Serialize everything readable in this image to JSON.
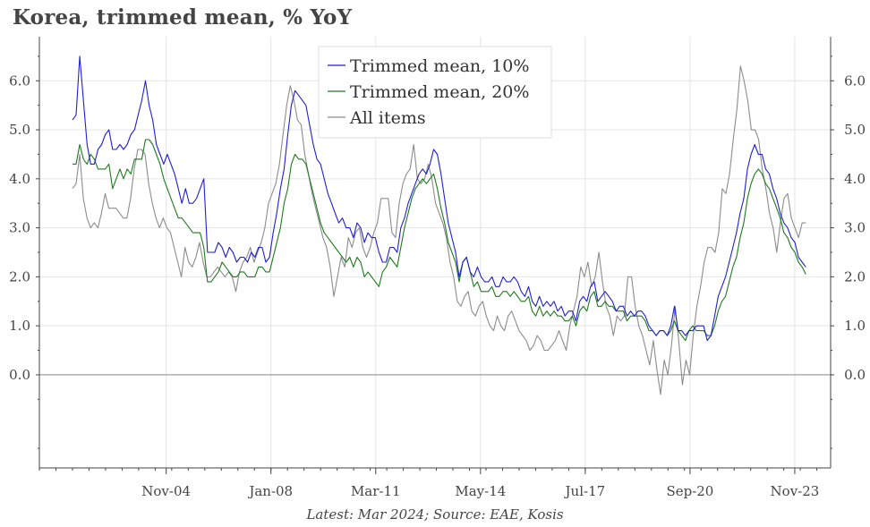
{
  "title": "Korea, trimmed mean, % YoY",
  "footnote": "Latest: Mar 2024; Source: EAE, Kosis",
  "chart_data": {
    "type": "line",
    "title": "Korea, trimmed mean, % YoY",
    "xlabel": "",
    "ylabel": "",
    "x_tick_labels": [
      "Nov-04",
      "Jan-08",
      "Mar-11",
      "May-14",
      "Jul-17",
      "Sep-20",
      "Nov-23"
    ],
    "x_tick_dates": [
      "2004-11",
      "2008-01",
      "2011-03",
      "2014-05",
      "2017-07",
      "2020-09",
      "2023-11"
    ],
    "x_start": "2002-01",
    "x_end": "2024-03",
    "xlim": [
      "2001-01",
      "2024-12"
    ],
    "ylim": [
      -1.9,
      6.9
    ],
    "y_ticks": [
      "0.0",
      "1.0",
      "2.0",
      "3.0",
      "4.0",
      "5.0",
      "6.0"
    ],
    "secondary_y_axis": true,
    "grid": true,
    "legend_position": "top-center",
    "series": [
      {
        "name": "Trimmed mean, 10%",
        "color": "#1f1fd6",
        "values": [
          5.2,
          5.3,
          6.5,
          5.6,
          4.7,
          4.3,
          4.3,
          4.6,
          4.7,
          4.9,
          5.0,
          4.6,
          4.6,
          4.7,
          4.6,
          4.7,
          4.9,
          5.0,
          5.3,
          5.6,
          6.0,
          5.5,
          5.2,
          4.7,
          4.5,
          4.3,
          4.5,
          4.3,
          4.1,
          3.8,
          3.5,
          3.8,
          3.5,
          3.5,
          3.6,
          3.8,
          4.0,
          2.5,
          2.5,
          2.5,
          2.7,
          2.6,
          2.4,
          2.6,
          2.5,
          2.3,
          2.4,
          2.4,
          2.3,
          2.5,
          2.4,
          2.6,
          2.6,
          2.3,
          2.4,
          2.9,
          3.3,
          3.8,
          4.2,
          4.9,
          5.5,
          5.8,
          5.7,
          5.6,
          5.5,
          5.1,
          4.7,
          4.4,
          4.3,
          4.0,
          3.7,
          3.5,
          3.3,
          3.1,
          3.2,
          3.0,
          3.0,
          2.8,
          3.1,
          3.0,
          2.7,
          2.9,
          2.8,
          2.8,
          2.5,
          2.3,
          2.3,
          2.6,
          2.6,
          2.5,
          3.0,
          3.2,
          3.5,
          3.7,
          3.9,
          4.1,
          4.2,
          4.1,
          4.3,
          4.6,
          4.5,
          4.1,
          3.6,
          3.1,
          2.8,
          2.5,
          2.0,
          2.3,
          2.4,
          2.1,
          2.0,
          2.2,
          2.0,
          1.9,
          1.9,
          2.0,
          1.8,
          1.8,
          2.0,
          1.9,
          1.9,
          2.0,
          1.9,
          1.7,
          1.6,
          1.8,
          1.5,
          1.4,
          1.6,
          1.4,
          1.5,
          1.4,
          1.5,
          1.3,
          1.4,
          1.2,
          1.3,
          1.3,
          1.1,
          1.5,
          1.6,
          1.5,
          1.8,
          1.9,
          1.5,
          1.6,
          1.7,
          1.6,
          1.5,
          1.3,
          1.4,
          1.4,
          1.2,
          1.3,
          1.2,
          1.3,
          1.3,
          1.2,
          1.0,
          0.9,
          0.8,
          0.9,
          0.9,
          0.8,
          1.0,
          1.4,
          0.9,
          0.9,
          0.8,
          0.9,
          0.9,
          1.0,
          1.0,
          1.0,
          0.7,
          0.8,
          1.2,
          1.6,
          1.8,
          2.0,
          2.3,
          2.6,
          2.9,
          3.3,
          3.6,
          4.2,
          4.5,
          4.7,
          4.5,
          4.5,
          4.2,
          4.1,
          3.8,
          3.6,
          3.3,
          3.1,
          3.0,
          2.8,
          2.7,
          2.4,
          2.3,
          2.2
        ]
      },
      {
        "name": "Trimmed mean, 20%",
        "color": "#1e7a1e",
        "values": [
          4.3,
          4.3,
          4.7,
          4.4,
          4.3,
          4.5,
          4.4,
          4.2,
          4.2,
          4.2,
          4.3,
          3.8,
          4.0,
          4.2,
          4.0,
          4.2,
          4.1,
          4.4,
          4.4,
          4.4,
          4.8,
          4.8,
          4.7,
          4.5,
          4.3,
          4.0,
          3.8,
          3.6,
          3.4,
          3.2,
          3.2,
          3.1,
          3.0,
          2.9,
          2.9,
          2.9,
          2.6,
          1.9,
          1.9,
          2.0,
          2.1,
          2.3,
          2.2,
          2.1,
          2.0,
          2.0,
          2.1,
          2.1,
          2.0,
          2.0,
          2.0,
          2.2,
          2.2,
          2.1,
          2.1,
          2.4,
          2.7,
          3.0,
          3.5,
          3.8,
          4.3,
          4.5,
          4.4,
          4.4,
          4.3,
          4.0,
          3.7,
          3.4,
          3.1,
          2.9,
          2.8,
          2.7,
          2.6,
          2.5,
          2.4,
          2.3,
          2.4,
          2.2,
          2.4,
          2.3,
          2.0,
          2.1,
          2.0,
          1.9,
          1.8,
          2.1,
          2.2,
          2.4,
          2.3,
          2.2,
          2.6,
          3.0,
          3.3,
          3.6,
          3.8,
          3.9,
          4.0,
          3.9,
          4.0,
          4.1,
          3.8,
          3.4,
          3.1,
          2.7,
          2.5,
          2.3,
          1.9,
          2.3,
          2.4,
          2.1,
          1.8,
          1.9,
          1.7,
          1.7,
          1.7,
          1.8,
          1.6,
          1.6,
          1.7,
          1.7,
          1.6,
          1.7,
          1.6,
          1.5,
          1.5,
          1.6,
          1.3,
          1.2,
          1.4,
          1.2,
          1.3,
          1.2,
          1.3,
          1.2,
          1.2,
          1.1,
          1.1,
          1.2,
          1.0,
          1.3,
          1.4,
          1.3,
          1.6,
          1.7,
          1.4,
          1.4,
          1.5,
          1.4,
          1.4,
          1.3,
          1.3,
          1.3,
          1.1,
          1.2,
          1.2,
          1.2,
          1.2,
          1.1,
          0.9,
          0.9,
          0.8,
          0.9,
          0.9,
          0.8,
          0.9,
          1.1,
          0.9,
          0.8,
          0.7,
          0.9,
          1.0,
          0.9,
          0.9,
          0.9,
          0.8,
          0.8,
          1.0,
          1.3,
          1.5,
          1.6,
          1.9,
          2.2,
          2.4,
          2.8,
          3.1,
          3.6,
          3.9,
          4.1,
          4.2,
          4.1,
          3.9,
          3.8,
          3.6,
          3.4,
          3.2,
          2.9,
          2.8,
          2.6,
          2.5,
          2.3,
          2.2,
          2.05
        ]
      },
      {
        "name": "All items",
        "color": "#8c8c8c",
        "values": [
          3.8,
          3.9,
          4.5,
          3.6,
          3.2,
          3.0,
          3.1,
          3.0,
          3.3,
          3.7,
          3.4,
          3.4,
          3.4,
          3.3,
          3.2,
          3.2,
          3.6,
          4.2,
          4.6,
          4.6,
          4.5,
          3.9,
          3.5,
          3.2,
          3.0,
          3.2,
          3.0,
          2.9,
          2.6,
          2.3,
          2.0,
          2.6,
          2.3,
          2.2,
          2.4,
          2.7,
          2.3,
          2.0,
          2.0,
          2.1,
          2.2,
          2.1,
          2.0,
          2.1,
          2.0,
          1.7,
          2.1,
          2.3,
          2.4,
          2.6,
          2.3,
          2.5,
          2.7,
          3.0,
          3.5,
          3.7,
          3.9,
          4.3,
          4.9,
          5.5,
          5.9,
          5.6,
          5.2,
          5.1,
          4.5,
          4.1,
          3.7,
          3.4,
          3.1,
          2.8,
          2.6,
          2.2,
          1.6,
          2.0,
          2.4,
          2.2,
          2.8,
          2.6,
          2.9,
          3.0,
          2.6,
          2.4,
          2.6,
          2.9,
          3.1,
          3.6,
          3.6,
          3.6,
          2.9,
          2.8,
          3.5,
          3.9,
          4.1,
          4.2,
          4.7,
          4.0,
          3.9,
          4.0,
          4.3,
          4.0,
          3.5,
          3.3,
          3.1,
          2.8,
          2.3,
          2.0,
          1.5,
          1.4,
          1.6,
          1.7,
          1.3,
          1.2,
          1.4,
          1.5,
          1.2,
          1.0,
          0.9,
          1.2,
          1.0,
          0.9,
          1.2,
          1.3,
          1.1,
          0.9,
          0.8,
          0.7,
          0.5,
          0.6,
          0.8,
          0.7,
          0.5,
          0.5,
          0.6,
          0.7,
          0.9,
          0.7,
          0.5,
          1.0,
          1.3,
          1.6,
          2.2,
          2.0,
          2.3,
          1.8,
          2.0,
          2.5,
          1.9,
          1.4,
          1.2,
          0.8,
          1.2,
          1.1,
          1.2,
          2.0,
          2.0,
          1.4,
          1.0,
          0.8,
          0.5,
          0.2,
          0.7,
          0.1,
          -0.4,
          0.3,
          0.0,
          0.6,
          1.4,
          0.7,
          -0.2,
          0.3,
          0.0,
          0.8,
          1.4,
          1.8,
          2.3,
          2.6,
          2.6,
          2.5,
          2.9,
          3.8,
          3.7,
          4.1,
          4.8,
          5.4,
          6.3,
          6.0,
          5.6,
          5.0,
          5.0,
          4.8,
          4.2,
          3.8,
          3.3,
          3.0,
          2.5,
          3.1,
          3.6,
          3.7,
          3.2,
          3.0,
          2.8,
          3.1,
          3.1
        ]
      }
    ]
  }
}
